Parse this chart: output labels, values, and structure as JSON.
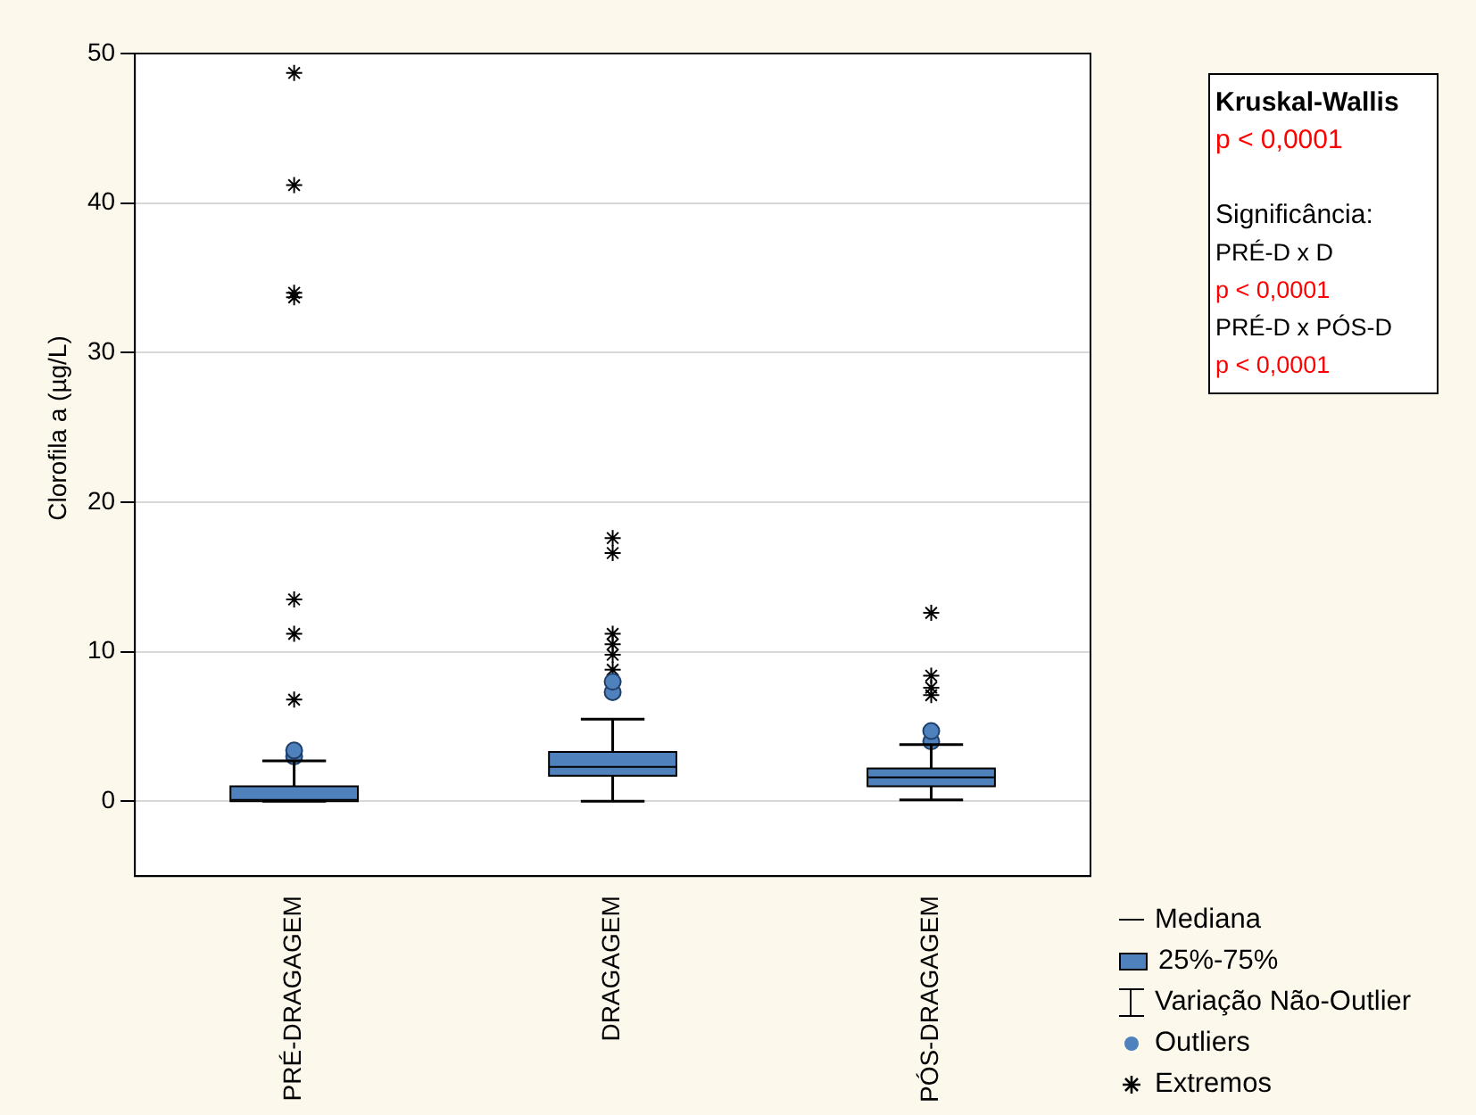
{
  "chart_data": {
    "type": "box",
    "ylabel": "Clorofila a (µg/L)",
    "categories": [
      "PRÉ-DRAGAGEM",
      "DRAGAGEM",
      "PÓS-DRAGAGEM"
    ],
    "ylim": [
      -5,
      50
    ],
    "yticks": [
      0,
      10,
      20,
      30,
      40,
      50
    ],
    "grid": "y",
    "legend": "bottom right",
    "annotations": [
      "Kruskal-Wallis",
      "p < 0,0001",
      "Significância:",
      "PRÉ-D x D",
      "p < 0,0001",
      "PRÉ-D x PÓS-D",
      "p < 0,0001",
      "Mediana",
      "Variação Não-Outlier"
    ],
    "series": [
      {
        "type": "box",
        "name": "25%-75%",
        "color": "#4f81bd",
        "boxes": [
          {
            "low": 0,
            "q1": 0,
            "median": 0.1,
            "q3": 1.0,
            "high": 2.7
          },
          {
            "low": 0,
            "q1": 1.7,
            "median": 2.3,
            "q3": 3.3,
            "high": 5.5
          },
          {
            "low": 0.1,
            "q1": 1.0,
            "median": 1.6,
            "q3": 2.2,
            "high": 3.8
          }
        ]
      },
      {
        "type": "scatter",
        "name": "Outliers",
        "color": "#4f81bd",
        "marker": "circle",
        "x": [
          "PRÉ-DRAGAGEM",
          "PRÉ-DRAGAGEM",
          "DRAGAGEM",
          "DRAGAGEM",
          "PÓS-DRAGAGEM",
          "PÓS-DRAGAGEM"
        ],
        "values": [
          3.0,
          3.4,
          7.3,
          8.0,
          4.0,
          4.7
        ]
      },
      {
        "type": "scatter",
        "name": "Extremos",
        "color": "#000000",
        "marker": "cross",
        "x": [
          "PRÉ-DRAGAGEM",
          "PRÉ-DRAGAGEM",
          "PRÉ-DRAGAGEM",
          "PRÉ-DRAGAGEM",
          "PRÉ-DRAGAGEM",
          "PRÉ-DRAGAGEM",
          "PRÉ-DRAGAGEM",
          "DRAGAGEM",
          "DRAGAGEM",
          "DRAGAGEM",
          "DRAGAGEM",
          "DRAGAGEM",
          "DRAGAGEM",
          "PÓS-DRAGAGEM",
          "PÓS-DRAGAGEM",
          "PÓS-DRAGAGEM",
          "PÓS-DRAGAGEM"
        ],
        "values": [
          48.7,
          41.2,
          34.0,
          33.7,
          13.5,
          11.2,
          6.8,
          17.6,
          16.6,
          11.2,
          10.5,
          9.8,
          8.8,
          12.6,
          8.4,
          7.6,
          7.1
        ]
      }
    ]
  }
}
